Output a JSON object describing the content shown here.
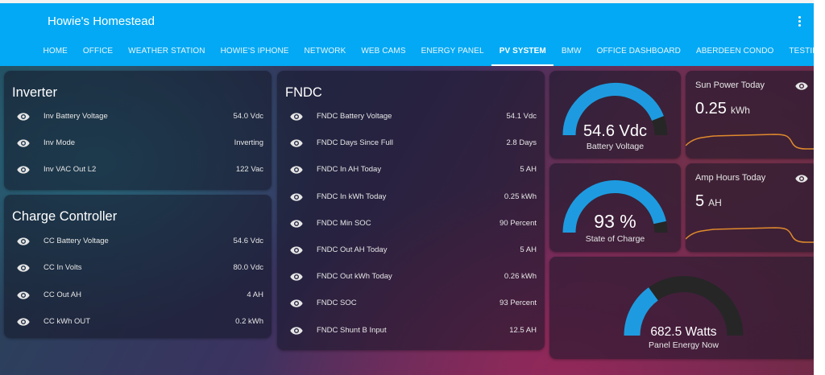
{
  "app": {
    "title": "Howie's Homestead"
  },
  "tabs": [
    {
      "label": "HOME"
    },
    {
      "label": "OFFICE"
    },
    {
      "label": "WEATHER STATION"
    },
    {
      "label": "HOWIE'S IPHONE"
    },
    {
      "label": "NETWORK"
    },
    {
      "label": "WEB CAMS"
    },
    {
      "label": "ENERGY PANEL"
    },
    {
      "label": "PV SYSTEM"
    },
    {
      "label": "BMW"
    },
    {
      "label": "OFFICE DASHBOARD"
    },
    {
      "label": "ABERDEEN CONDO"
    },
    {
      "label": "TESTING"
    }
  ],
  "active_tab": "PV SYSTEM",
  "inverter": {
    "title": "Inverter",
    "rows": [
      {
        "label": "Inv Battery Voltage",
        "value": "54.0 Vdc"
      },
      {
        "label": "Inv Mode",
        "value": "Inverting"
      },
      {
        "label": "Inv VAC Out L2",
        "value": "122 Vac"
      }
    ]
  },
  "charge_controller": {
    "title": "Charge Controller",
    "rows": [
      {
        "label": "CC Battery Voltage",
        "value": "54.6 Vdc"
      },
      {
        "label": "CC In Volts",
        "value": "80.0 Vdc"
      },
      {
        "label": "CC Out AH",
        "value": "4 AH"
      },
      {
        "label": "CC kWh OUT",
        "value": "0.2 kWh"
      }
    ]
  },
  "fndc": {
    "title": "FNDC",
    "rows": [
      {
        "label": "FNDC Battery Voltage",
        "value": "54.1 Vdc"
      },
      {
        "label": "FNDC Days Since Full",
        "value": "2.8 Days"
      },
      {
        "label": "FNDC In AH Today",
        "value": "5 AH"
      },
      {
        "label": "FNDC In kWh Today",
        "value": "0.25 kWh"
      },
      {
        "label": "FNDC Min SOC",
        "value": "90 Percent"
      },
      {
        "label": "FNDC Out AH Today",
        "value": "5 AH"
      },
      {
        "label": "FNDC Out kWh Today",
        "value": "0.26 kWh"
      },
      {
        "label": "FNDC SOC",
        "value": "93 Percent"
      },
      {
        "label": "FNDC Shunt B Input",
        "value": "12.5 AH"
      }
    ]
  },
  "gauges": {
    "battery": {
      "value": "54.6 Vdc",
      "label": "Battery Voltage",
      "fill": 0.88
    },
    "soc": {
      "value": "93 %",
      "label": "State of Charge",
      "fill": 0.93
    },
    "panel": {
      "value": "682.5 Watts",
      "label": "Panel Energy Now",
      "fill": 0.3
    }
  },
  "sensors": {
    "sun_power": {
      "name": "Sun Power Today",
      "value": "0.25",
      "unit": "kWh"
    },
    "amp_hours": {
      "name": "Amp Hours Today",
      "value": "5",
      "unit": "AH"
    }
  },
  "colors": {
    "header": "#03a9f4",
    "gauge_fill": "#1e9be0",
    "gauge_track": "#262626",
    "sparkline": "#e08a2c"
  },
  "icons": {
    "row_icon": "eye-icon",
    "menu": "dots-vertical-icon"
  }
}
